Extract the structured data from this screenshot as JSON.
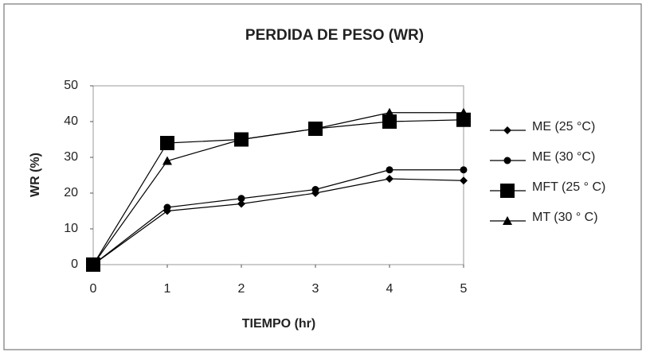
{
  "chart_data": {
    "type": "line",
    "title": "PERDIDA DE PESO (WR)",
    "xlabel": "TIEMPO (hr)",
    "ylabel": "WR (%)",
    "x": [
      0,
      1,
      2,
      3,
      4,
      5
    ],
    "xlim": [
      0,
      5
    ],
    "xticks": [
      0,
      1,
      2,
      3,
      4,
      5
    ],
    "ylim": [
      0,
      50
    ],
    "yticks": [
      0,
      10,
      20,
      30,
      40,
      50
    ],
    "grid": false,
    "legend": "right",
    "series": [
      {
        "name": "ME (25 °C)",
        "color": "#000000",
        "marker": "diamond",
        "values": [
          0,
          15,
          17,
          20,
          24,
          23.5
        ]
      },
      {
        "name": "ME (30 °C)",
        "color": "#000000",
        "marker": "circle",
        "values": [
          0,
          16,
          18.5,
          21,
          26.5,
          26.5
        ]
      },
      {
        "name": "MFT (25 ° C)",
        "color": "#000000",
        "marker": "square",
        "values": [
          0,
          34,
          35,
          38,
          40,
          40.5
        ]
      },
      {
        "name": "MT (30 ° C)",
        "color": "#000000",
        "marker": "triangle",
        "values": [
          0,
          29,
          35,
          38,
          42.5,
          42.5
        ]
      }
    ]
  }
}
